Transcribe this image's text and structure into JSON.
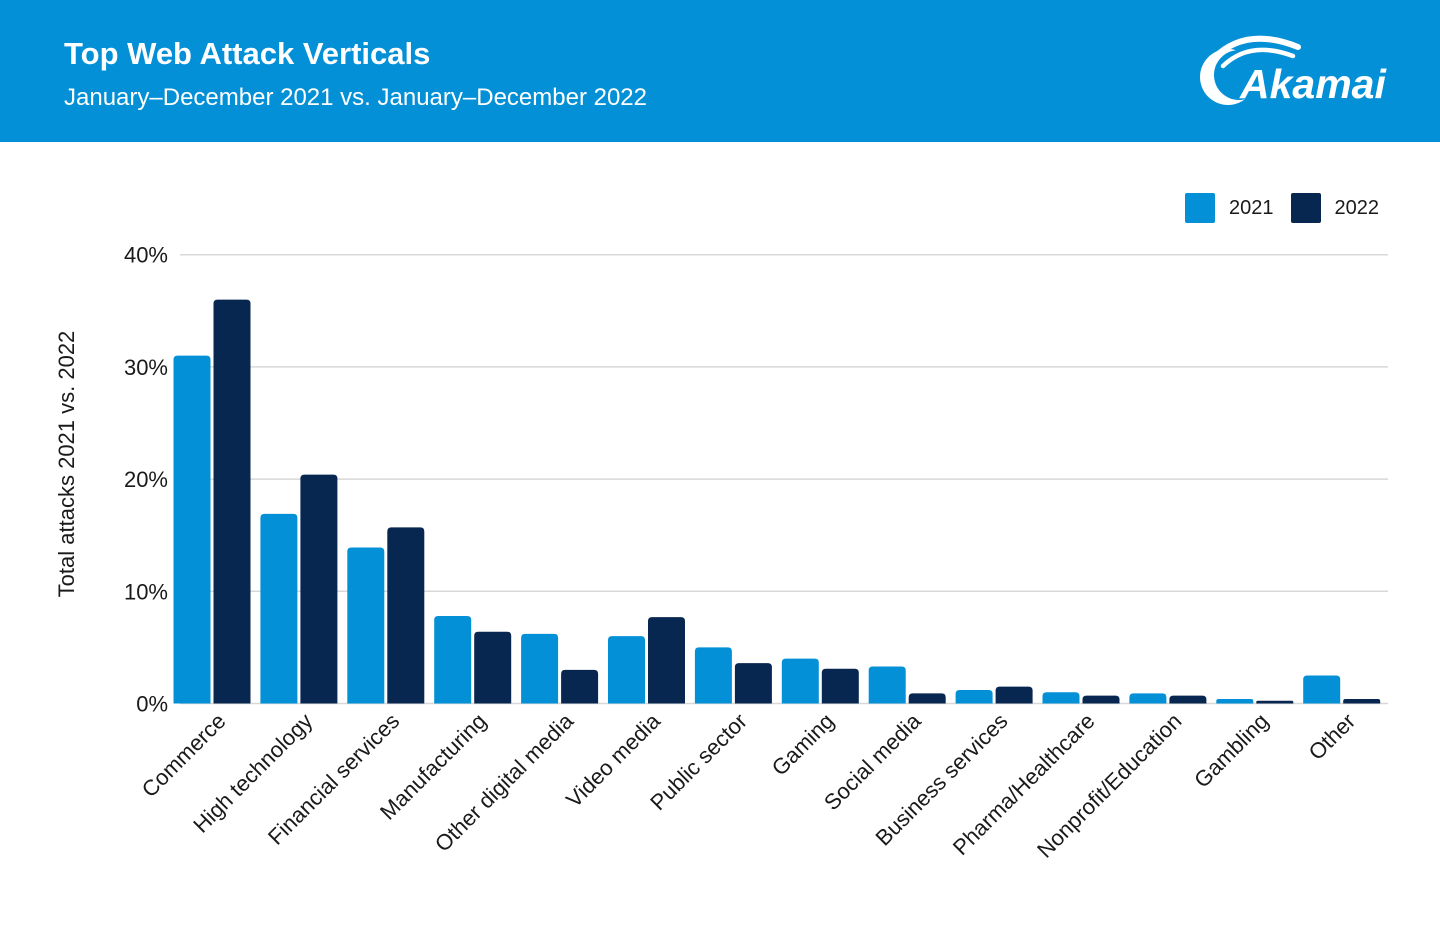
{
  "header": {
    "title": "Top Web Attack Verticals",
    "subtitle": "January–December 2021 vs. January–December 2022",
    "logo_text": "Akamai"
  },
  "colors": {
    "header_bg": "#0490d6",
    "series_2021": "#0490d6",
    "series_2022": "#082750",
    "gridline": "#d8d8d8",
    "text": "#1a1a1a"
  },
  "legend": [
    {
      "label": "2021",
      "color": "#0490d6"
    },
    {
      "label": "2022",
      "color": "#082750"
    }
  ],
  "chart_data": {
    "type": "bar",
    "title": "Top Web Attack Verticals",
    "subtitle": "January–December 2021 vs. January–December 2022",
    "xlabel": "",
    "ylabel": "Total attacks 2021 vs. 2022",
    "ylim": [
      0,
      40
    ],
    "yticks": [
      0,
      10,
      20,
      30,
      40
    ],
    "ytick_labels": [
      "0%",
      "10%",
      "20%",
      "30%",
      "40%"
    ],
    "grid": true,
    "legend_position": "top-right",
    "categories": [
      "Commerce",
      "High technology",
      "Financial services",
      "Manufacturing",
      "Other digital media",
      "Video media",
      "Public sector",
      "Gaming",
      "Social media",
      "Business services",
      "Pharma/Healthcare",
      "Nonprofit/Education",
      "Gambling",
      "Other"
    ],
    "series": [
      {
        "name": "2021",
        "color": "#0490d6",
        "values": [
          31.0,
          16.9,
          13.9,
          7.8,
          6.2,
          6.0,
          5.0,
          4.0,
          3.3,
          1.2,
          1.0,
          0.9,
          0.4,
          2.5
        ]
      },
      {
        "name": "2022",
        "color": "#082750",
        "values": [
          36.0,
          20.4,
          15.7,
          6.4,
          3.0,
          7.7,
          3.6,
          3.1,
          0.9,
          1.5,
          0.7,
          0.7,
          0.25,
          0.4
        ]
      }
    ]
  }
}
